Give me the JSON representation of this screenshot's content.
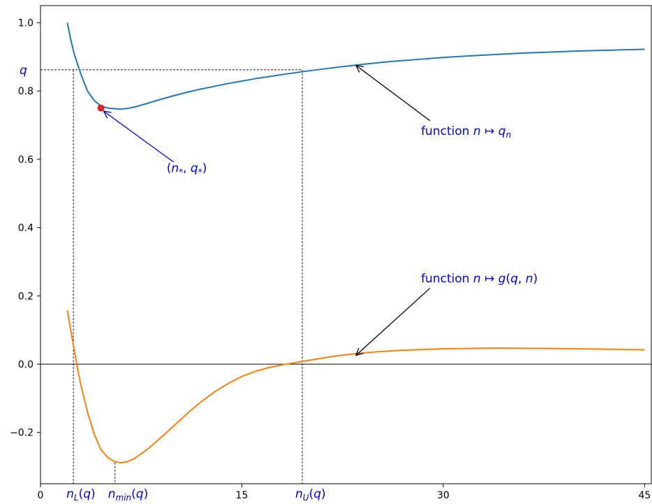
{
  "chart_data": {
    "type": "line",
    "title": "",
    "xlabel": "",
    "ylabel": "",
    "xlim": [
      0,
      45.5
    ],
    "ylim": [
      -0.35,
      1.05
    ],
    "grid": false,
    "legend": "none",
    "x_ticks": [
      0,
      15,
      30,
      45
    ],
    "y_ticks": [
      -0.2,
      0.0,
      0.2,
      0.4,
      0.6,
      0.8,
      1.0
    ],
    "y_tick_labels": [
      "−0.2",
      "0.0",
      "0.2",
      "0.4",
      "0.6",
      "0.8",
      "1.0"
    ],
    "series": [
      {
        "key": "qn",
        "color": "#1f77b4",
        "x": [
          2,
          2.2,
          2.5,
          3,
          3.5,
          4,
          4.5,
          5,
          5.5,
          6,
          6.5,
          7,
          8,
          9,
          10,
          11,
          12,
          13,
          14,
          15,
          16,
          18,
          20,
          22,
          24,
          26,
          28,
          30,
          32,
          34,
          36,
          38,
          40,
          42,
          45
        ],
        "y": [
          1.0,
          0.96,
          0.91,
          0.85,
          0.8,
          0.772,
          0.756,
          0.75,
          0.748,
          0.747,
          0.749,
          0.753,
          0.764,
          0.776,
          0.787,
          0.797,
          0.806,
          0.814,
          0.822,
          0.829,
          0.836,
          0.848,
          0.859,
          0.869,
          0.878,
          0.886,
          0.892,
          0.898,
          0.903,
          0.907,
          0.911,
          0.914,
          0.917,
          0.919,
          0.922
        ]
      },
      {
        "key": "g",
        "color": "#ff7f0e",
        "x": [
          2,
          2.25,
          2.5,
          2.75,
          3,
          3.5,
          4,
          4.5,
          5,
          5.5,
          6,
          6.5,
          7,
          8,
          9,
          10,
          11,
          12,
          13,
          14,
          15,
          16,
          17,
          18,
          19.5,
          21,
          22,
          23.5,
          25,
          27,
          30,
          34,
          38,
          42,
          45
        ],
        "y": [
          0.158,
          0.1,
          0.045,
          -0.01,
          -0.06,
          -0.14,
          -0.205,
          -0.25,
          -0.273,
          -0.285,
          -0.289,
          -0.285,
          -0.276,
          -0.248,
          -0.214,
          -0.178,
          -0.142,
          -0.109,
          -0.08,
          -0.056,
          -0.036,
          -0.021,
          -0.01,
          -0.002,
          0.008,
          0.018,
          0.024,
          0.031,
          0.036,
          0.041,
          0.045,
          0.047,
          0.046,
          0.044,
          0.042
        ]
      }
    ],
    "q_level": 0.862,
    "nL": 2.45,
    "nU": 19.5,
    "nmin": 5.55,
    "nmin_ref_y": -0.288,
    "star_point": {
      "x": 4.5,
      "y": 0.75,
      "color": "#d62728"
    },
    "labels": {
      "q": "q",
      "nL": "n_L(q)",
      "nmin": "n_min(q)",
      "nU": "n_U(q)",
      "star": "(n_*, q_*)",
      "qn_func": "function n ↦ q_n",
      "g_func": "function n ↦ g(q, n)"
    },
    "annotation_targets": {
      "star": {
        "text_x": 9.5,
        "text_y": 0.555,
        "point_x": 4.6,
        "point_y": 0.745
      },
      "qn_func": {
        "text_x": 28.5,
        "text_y": 0.68,
        "point_x": 23.5,
        "point_y": 0.875
      },
      "g_func": {
        "text_x": 28.5,
        "text_y": 0.235,
        "point_x": 23.5,
        "point_y": 0.03
      }
    }
  }
}
